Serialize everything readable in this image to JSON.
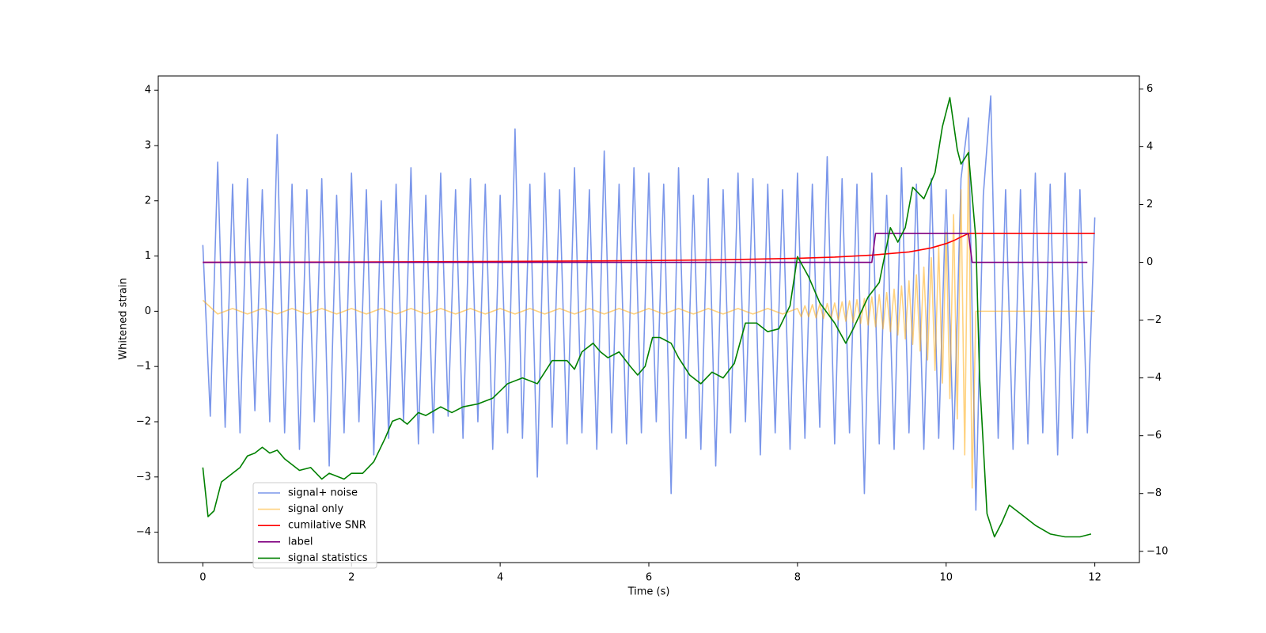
{
  "chart_data": {
    "type": "line",
    "xlabel": "Time (s)",
    "ylabel": "Whitened strain",
    "xlim": [
      -0.6,
      12.6
    ],
    "ylim": [
      -4.55,
      4.26
    ],
    "y2lim": [
      -10.39,
      6.45
    ],
    "xticks": [
      0,
      2,
      4,
      6,
      8,
      10,
      12
    ],
    "yticks": [
      {
        "value": -4,
        "label": "−4"
      },
      {
        "value": -3,
        "label": "−3"
      },
      {
        "value": -2,
        "label": "−2"
      },
      {
        "value": -1,
        "label": "−1"
      },
      0,
      1,
      2,
      3,
      4
    ],
    "y2ticks": [
      {
        "value": -10,
        "label": "−10"
      },
      {
        "value": -8,
        "label": "−8"
      },
      {
        "value": -6,
        "label": "−6"
      },
      {
        "value": -4,
        "label": "−4"
      },
      {
        "value": -2,
        "label": "−2"
      },
      0,
      2,
      4,
      6
    ],
    "legend_loc": "lower left",
    "series": [
      {
        "name": "signal+ noise",
        "color": "#4169e1",
        "opacity": 0.7,
        "x": [
          0,
          0.1,
          0.2,
          0.3,
          0.4,
          0.5,
          0.6,
          0.7,
          0.8,
          0.9,
          1,
          1.1,
          1.2,
          1.3,
          1.4,
          1.5,
          1.6,
          1.7,
          1.8,
          1.9,
          2,
          2.1,
          2.2,
          2.3,
          2.4,
          2.5,
          2.6,
          2.7,
          2.8,
          2.9,
          3,
          3.1,
          3.2,
          3.3,
          3.4,
          3.5,
          3.6,
          3.7,
          3.8,
          3.9,
          4,
          4.1,
          4.2,
          4.3,
          4.4,
          4.5,
          4.6,
          4.7,
          4.8,
          4.9,
          5,
          5.1,
          5.2,
          5.3,
          5.4,
          5.5,
          5.6,
          5.7,
          5.8,
          5.9,
          6,
          6.1,
          6.2,
          6.3,
          6.4,
          6.5,
          6.6,
          6.7,
          6.8,
          6.9,
          7,
          7.1,
          7.2,
          7.3,
          7.4,
          7.5,
          7.6,
          7.7,
          7.8,
          7.9,
          8,
          8.1,
          8.2,
          8.3,
          8.4,
          8.5,
          8.6,
          8.7,
          8.8,
          8.9,
          9,
          9.1,
          9.2,
          9.3,
          9.4,
          9.5,
          9.6,
          9.7,
          9.8,
          9.9,
          10,
          10.1,
          10.2,
          10.3,
          10.4,
          10.5,
          10.6,
          10.7,
          10.8,
          10.9,
          11,
          11.1,
          11.2,
          11.3,
          11.4,
          11.5,
          11.6,
          11.7,
          11.8,
          11.9,
          12
        ],
        "values": [
          1.2,
          -1.9,
          2.7,
          -2.1,
          2.3,
          -2.2,
          2.4,
          -1.8,
          2.2,
          -2.0,
          3.2,
          -2.2,
          2.3,
          -2.5,
          2.2,
          -2.0,
          2.4,
          -2.8,
          2.1,
          -2.2,
          2.5,
          -2.0,
          2.2,
          -2.6,
          2.0,
          -2.3,
          2.3,
          -2.0,
          2.6,
          -2.4,
          2.1,
          -2.2,
          2.5,
          -1.9,
          2.2,
          -2.3,
          2.4,
          -2.0,
          2.3,
          -2.5,
          2.1,
          -2.2,
          3.3,
          -2.3,
          2.3,
          -3.0,
          2.5,
          -2.1,
          2.2,
          -2.4,
          2.6,
          -2.2,
          2.2,
          -2.5,
          2.9,
          -2.2,
          2.3,
          -2.4,
          2.6,
          -2.2,
          2.5,
          -2.0,
          2.3,
          -3.3,
          2.6,
          -2.3,
          2.1,
          -2.5,
          2.4,
          -2.8,
          2.2,
          -2.2,
          2.5,
          -2.0,
          2.4,
          -2.6,
          2.3,
          -2.2,
          2.2,
          -2.5,
          2.5,
          -2.3,
          2.3,
          -2.1,
          2.8,
          -2.4,
          2.4,
          -2.2,
          2.3,
          -3.3,
          2.5,
          -2.4,
          2.1,
          -2.5,
          2.6,
          -2.2,
          2.3,
          -2.5,
          2.4,
          -2.3,
          2.2,
          -2.5,
          2.4,
          3.5,
          -3.6,
          2.1,
          3.9,
          -2.3,
          2.2,
          -2.5,
          2.2,
          -2.4,
          2.5,
          -2.2,
          2.3,
          -2.6,
          2.5,
          -2.3,
          2.2,
          -2.2,
          1.7
        ]
      },
      {
        "name": "signal only",
        "color": "orange",
        "opacity": 0.5,
        "x": [
          0,
          0.2,
          0.4,
          0.6,
          0.8,
          1,
          1.2,
          1.4,
          1.6,
          1.8,
          2,
          2.2,
          2.4,
          2.6,
          2.8,
          3,
          3.2,
          3.4,
          3.6,
          3.8,
          4,
          4.2,
          4.4,
          4.6,
          4.8,
          5,
          5.2,
          5.4,
          5.6,
          5.8,
          6,
          6.2,
          6.4,
          6.6,
          6.8,
          7,
          7.2,
          7.4,
          7.6,
          7.8,
          8,
          8.05,
          8.1,
          8.15,
          8.2,
          8.25,
          8.3,
          8.35,
          8.4,
          8.45,
          8.5,
          8.55,
          8.6,
          8.65,
          8.7,
          8.75,
          8.8,
          8.85,
          8.9,
          8.95,
          9,
          9.05,
          9.1,
          9.15,
          9.2,
          9.25,
          9.3,
          9.35,
          9.4,
          9.45,
          9.5,
          9.55,
          9.6,
          9.65,
          9.7,
          9.75,
          9.8,
          9.85,
          9.9,
          9.95,
          10,
          10.05,
          10.1,
          10.15,
          10.2,
          10.25,
          10.3,
          10.35,
          10.4,
          12
        ],
        "values": [
          0.2,
          -0.05,
          0.05,
          -0.05,
          0.05,
          -0.05,
          0.05,
          -0.05,
          0.05,
          -0.05,
          0.05,
          -0.05,
          0.05,
          -0.05,
          0.05,
          -0.05,
          0.05,
          -0.05,
          0.05,
          -0.05,
          0.05,
          -0.05,
          0.05,
          -0.05,
          0.05,
          -0.05,
          0.05,
          -0.05,
          0.05,
          -0.05,
          0.05,
          -0.05,
          0.05,
          -0.05,
          0.05,
          -0.05,
          0.05,
          -0.05,
          0.05,
          -0.05,
          0.05,
          -0.1,
          0.1,
          -0.1,
          0.12,
          -0.12,
          0.13,
          -0.13,
          0.14,
          -0.14,
          0.15,
          -0.16,
          0.17,
          -0.18,
          0.19,
          -0.2,
          0.21,
          -0.22,
          0.23,
          -0.25,
          0.26,
          -0.28,
          0.3,
          -0.32,
          0.34,
          -0.37,
          0.4,
          -0.43,
          0.46,
          -0.5,
          0.55,
          -0.6,
          0.66,
          -0.72,
          0.8,
          -0.88,
          0.97,
          -1.07,
          1.18,
          -1.3,
          1.43,
          -1.58,
          1.75,
          -1.95,
          2.2,
          -2.6,
          2.9,
          -3.2,
          0,
          0
        ]
      },
      {
        "name": "cumilative SNR",
        "color": "red",
        "axis": "y2",
        "x": [
          0,
          2,
          4,
          6,
          7,
          8,
          8.5,
          9,
          9.5,
          9.8,
          10,
          10.1,
          10.2,
          10.3,
          12
        ],
        "values": [
          0,
          0.01,
          0.03,
          0.06,
          0.09,
          0.14,
          0.18,
          0.25,
          0.36,
          0.5,
          0.65,
          0.75,
          0.88,
          1,
          1
        ]
      },
      {
        "name": "label",
        "color": "purple",
        "axis": "y2",
        "x": [
          0,
          9,
          9.05,
          10.3,
          10.35,
          11.9
        ],
        "values": [
          0,
          0,
          1,
          1,
          0,
          0
        ]
      },
      {
        "name": "signal statistics",
        "color": "green",
        "axis": "y2",
        "x": [
          0,
          0.07,
          0.15,
          0.25,
          0.4,
          0.5,
          0.6,
          0.7,
          0.8,
          0.9,
          1,
          1.1,
          1.3,
          1.45,
          1.6,
          1.7,
          1.9,
          2,
          2.15,
          2.3,
          2.45,
          2.55,
          2.65,
          2.75,
          2.9,
          3,
          3.2,
          3.35,
          3.5,
          3.7,
          3.9,
          4.1,
          4.3,
          4.5,
          4.7,
          4.9,
          5,
          5.1,
          5.25,
          5.35,
          5.45,
          5.6,
          5.75,
          5.85,
          5.95,
          6.05,
          6.15,
          6.3,
          6.4,
          6.55,
          6.7,
          6.85,
          7,
          7.15,
          7.3,
          7.45,
          7.6,
          7.75,
          7.9,
          8,
          8.15,
          8.3,
          8.5,
          8.65,
          8.75,
          8.95,
          9.1,
          9.25,
          9.35,
          9.45,
          9.55,
          9.7,
          9.85,
          9.95,
          10.05,
          10.15,
          10.2,
          10.3,
          10.4,
          10.45,
          10.55,
          10.65,
          10.75,
          10.85,
          11,
          11.2,
          11.4,
          11.6,
          11.8,
          11.95
        ],
        "values": [
          -7.1,
          -8.8,
          -8.6,
          -7.6,
          -7.3,
          -7.1,
          -6.7,
          -6.6,
          -6.4,
          -6.6,
          -6.5,
          -6.8,
          -7.2,
          -7.1,
          -7.5,
          -7.3,
          -7.5,
          -7.3,
          -7.3,
          -6.9,
          -6.1,
          -5.5,
          -5.4,
          -5.6,
          -5.2,
          -5.3,
          -5.0,
          -5.2,
          -5.0,
          -4.9,
          -4.7,
          -4.2,
          -4.0,
          -4.2,
          -3.4,
          -3.4,
          -3.7,
          -3.1,
          -2.8,
          -3.1,
          -3.3,
          -3.1,
          -3.6,
          -3.9,
          -3.6,
          -2.6,
          -2.6,
          -2.8,
          -3.3,
          -3.9,
          -4.2,
          -3.8,
          -4.0,
          -3.5,
          -2.1,
          -2.1,
          -2.4,
          -2.3,
          -1.5,
          0.2,
          -0.5,
          -1.4,
          -2.1,
          -2.8,
          -2.3,
          -1.2,
          -0.7,
          1.2,
          0.7,
          1.2,
          2.6,
          2.2,
          3.1,
          4.7,
          5.7,
          3.9,
          3.4,
          3.8,
          0.8,
          -4.0,
          -8.7,
          -9.5,
          -9.0,
          -8.4,
          -8.7,
          -9.1,
          -9.4,
          -9.5,
          -9.5,
          -9.4
        ]
      }
    ]
  }
}
